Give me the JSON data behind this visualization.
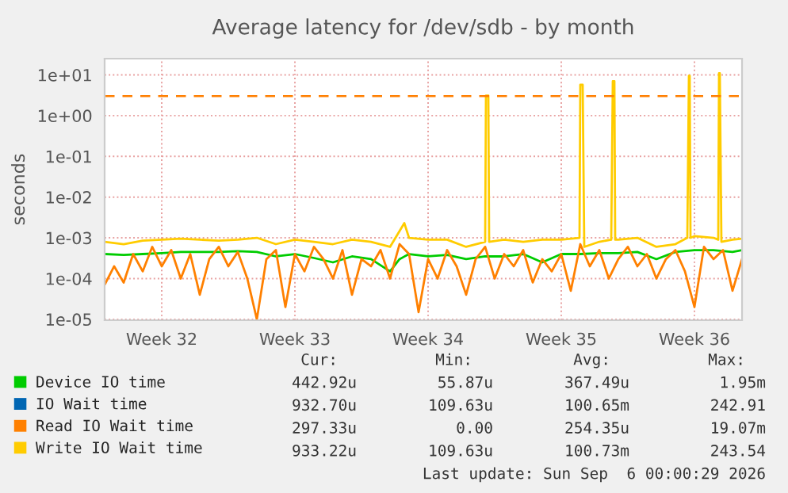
{
  "chart_data": {
    "type": "line",
    "title": "Average latency for /dev/sdb - by month",
    "ylabel": "seconds",
    "log": "y",
    "xlim": [
      "2026-08-03T12:00",
      "2026-09-06T00:00"
    ],
    "xticks": [
      {
        "value": "2026-08-06T12:00",
        "label": "Week 32"
      },
      {
        "value": "2026-08-13T12:00",
        "label": "Week 33"
      },
      {
        "value": "2026-08-20T12:00",
        "label": "Week 34"
      },
      {
        "value": "2026-08-27T12:00",
        "label": "Week 35"
      },
      {
        "value": "2026-09-03T12:00",
        "label": "Week 36"
      }
    ],
    "ylim": [
      9.5e-06,
      25
    ],
    "yticks": [
      {
        "value": 1e-05,
        "label": "1e-05"
      },
      {
        "value": 0.0001,
        "label": "1e-04"
      },
      {
        "value": 0.001,
        "label": "1e-03"
      },
      {
        "value": 0.01,
        "label": "1e-02"
      },
      {
        "value": 0.1,
        "label": "1e-01"
      },
      {
        "value": 1,
        "label": "1e+00"
      },
      {
        "value": 10,
        "label": "1e+01"
      }
    ],
    "grid": true,
    "legend": "bottom left",
    "ref_lines": [
      {
        "axis": "y",
        "value": 3,
        "color": "#ff7f00",
        "line_style": "dashed"
      }
    ],
    "series": [
      {
        "name": "Device IO time",
        "color": "#00cc00",
        "x": [
          "2026-08-03T12:00",
          "2026-08-04T12:00",
          "2026-08-05T12:00",
          "2026-08-06T12:00",
          "2026-08-07T12:00",
          "2026-08-08T12:00",
          "2026-08-09T12:00",
          "2026-08-10T12:00",
          "2026-08-11T12:00",
          "2026-08-12T12:00",
          "2026-08-13T12:00",
          "2026-08-14T12:00",
          "2026-08-15T12:00",
          "2026-08-16T12:00",
          "2026-08-17T12:00",
          "2026-08-18T12:00",
          "2026-08-19T00:00",
          "2026-08-19T12:00",
          "2026-08-20T12:00",
          "2026-08-21T12:00",
          "2026-08-22T12:00",
          "2026-08-23T12:00",
          "2026-08-24T12:00",
          "2026-08-25T12:00",
          "2026-08-26T12:00",
          "2026-08-27T12:00",
          "2026-08-28T12:00",
          "2026-08-29T12:00",
          "2026-08-30T12:00",
          "2026-08-31T12:00",
          "2026-09-01T12:00",
          "2026-09-02T12:00",
          "2026-09-03T12:00",
          "2026-09-04T12:00",
          "2026-09-05T12:00",
          "2026-09-06T00:00"
        ],
        "values": [
          0.0004,
          0.00038,
          0.0004,
          0.00042,
          0.00045,
          0.00045,
          0.00045,
          0.00047,
          0.00045,
          0.00035,
          0.0004,
          0.00032,
          0.00025,
          0.00035,
          0.0003,
          0.00015,
          0.0003,
          0.0004,
          0.00035,
          0.00038,
          0.0003,
          0.00035,
          0.00035,
          0.0004,
          0.00025,
          0.0004,
          0.0004,
          0.00042,
          0.00042,
          0.00045,
          0.0003,
          0.00045,
          0.0005,
          0.0005,
          0.00045,
          0.0005
        ]
      },
      {
        "name": "IO Wait time",
        "color": "#0066b3"
      },
      {
        "name": "Read IO Wait time",
        "color": "#ff8000",
        "x": [
          "2026-08-03T12:00",
          "2026-08-04T00:00",
          "2026-08-04T12:00",
          "2026-08-05T00:00",
          "2026-08-05T12:00",
          "2026-08-06T00:00",
          "2026-08-06T12:00",
          "2026-08-07T00:00",
          "2026-08-07T12:00",
          "2026-08-08T00:00",
          "2026-08-08T12:00",
          "2026-08-09T00:00",
          "2026-08-09T12:00",
          "2026-08-10T00:00",
          "2026-08-10T12:00",
          "2026-08-11T00:00",
          "2026-08-11T12:00",
          "2026-08-12T00:00",
          "2026-08-12T12:00",
          "2026-08-13T00:00",
          "2026-08-13T12:00",
          "2026-08-14T00:00",
          "2026-08-14T12:00",
          "2026-08-15T00:00",
          "2026-08-15T12:00",
          "2026-08-16T00:00",
          "2026-08-16T12:00",
          "2026-08-17T00:00",
          "2026-08-17T12:00",
          "2026-08-18T00:00",
          "2026-08-18T12:00",
          "2026-08-19T00:00",
          "2026-08-19T12:00",
          "2026-08-20T00:00",
          "2026-08-20T12:00",
          "2026-08-21T00:00",
          "2026-08-21T12:00",
          "2026-08-22T00:00",
          "2026-08-22T12:00",
          "2026-08-23T00:00",
          "2026-08-23T12:00",
          "2026-08-24T00:00",
          "2026-08-24T12:00",
          "2026-08-25T00:00",
          "2026-08-25T12:00",
          "2026-08-26T00:00",
          "2026-08-26T12:00",
          "2026-08-27T00:00",
          "2026-08-27T12:00",
          "2026-08-28T00:00",
          "2026-08-28T12:00",
          "2026-08-29T00:00",
          "2026-08-29T12:00",
          "2026-08-30T00:00",
          "2026-08-30T12:00",
          "2026-08-31T00:00",
          "2026-08-31T12:00",
          "2026-09-01T00:00",
          "2026-09-01T12:00",
          "2026-09-02T00:00",
          "2026-09-02T12:00",
          "2026-09-03T00:00",
          "2026-09-03T12:00",
          "2026-09-04T00:00",
          "2026-09-04T12:00",
          "2026-09-05T00:00",
          "2026-09-05T12:00",
          "2026-09-06T00:00"
        ],
        "values": [
          7e-05,
          0.0002,
          8e-05,
          0.0004,
          0.00015,
          0.0006,
          0.0002,
          0.0005,
          0.0001,
          0.0004,
          4e-05,
          0.0003,
          0.0006,
          0.0002,
          0.00045,
          0.0001,
          1e-05,
          0.0003,
          0.0005,
          2e-05,
          0.0004,
          0.00015,
          0.0006,
          0.0003,
          0.0001,
          0.0005,
          4e-05,
          0.0003,
          0.0002,
          0.0005,
          0.0001,
          0.0007,
          0.0004,
          1.5e-05,
          0.0003,
          0.0001,
          0.0005,
          0.0002,
          4e-05,
          0.0003,
          0.0006,
          0.0001,
          0.0004,
          0.0002,
          0.0005,
          8e-05,
          0.0003,
          0.00015,
          0.0004,
          5e-05,
          0.0007,
          0.0002,
          0.0005,
          0.0001,
          0.0003,
          0.0006,
          0.0002,
          0.0004,
          0.0001,
          0.0003,
          0.0005,
          0.00015,
          2e-05,
          0.0006,
          0.0003,
          0.0005,
          5e-05,
          0.0003
        ]
      },
      {
        "name": "Write IO Wait time",
        "color": "#ffcc00",
        "x": [
          "2026-08-03T12:00",
          "2026-08-04T12:00",
          "2026-08-05T12:00",
          "2026-08-06T12:00",
          "2026-08-07T12:00",
          "2026-08-08T12:00",
          "2026-08-09T12:00",
          "2026-08-10T12:00",
          "2026-08-11T12:00",
          "2026-08-12T12:00",
          "2026-08-13T12:00",
          "2026-08-14T12:00",
          "2026-08-15T12:00",
          "2026-08-16T12:00",
          "2026-08-17T12:00",
          "2026-08-18T12:00",
          "2026-08-19T06:00",
          "2026-08-19T12:00",
          "2026-08-20T12:00",
          "2026-08-21T12:00",
          "2026-08-22T12:00",
          "2026-08-23T12:00",
          "2026-08-23T13:00",
          "2026-08-23T16:00",
          "2026-08-23T17:00",
          "2026-08-24T12:00",
          "2026-08-25T12:00",
          "2026-08-26T12:00",
          "2026-08-27T12:00",
          "2026-08-28T11:00",
          "2026-08-28T12:00",
          "2026-08-28T15:00",
          "2026-08-28T17:00",
          "2026-08-29T12:00",
          "2026-08-30T03:00",
          "2026-08-30T05:00",
          "2026-08-30T07:00",
          "2026-08-30T08:00",
          "2026-08-30T12:00",
          "2026-08-31T12:00",
          "2026-09-01T12:00",
          "2026-09-02T12:00",
          "2026-09-03T03:00",
          "2026-09-03T05:00",
          "2026-09-03T06:00",
          "2026-09-03T07:00",
          "2026-09-03T12:00",
          "2026-09-04T12:00",
          "2026-09-04T18:00",
          "2026-09-04T19:00",
          "2026-09-04T20:00",
          "2026-09-04T22:00",
          "2026-09-05T12:00",
          "2026-09-06T00:00"
        ],
        "values": [
          0.0008,
          0.0007,
          0.00085,
          0.0009,
          0.00095,
          0.0009,
          0.00085,
          0.0009,
          0.001,
          0.0007,
          0.0009,
          0.0008,
          0.0007,
          0.0009,
          0.0008,
          0.0006,
          0.0023,
          0.001,
          0.0009,
          0.0009,
          0.0006,
          0.0008,
          3.1,
          3.1,
          0.0008,
          0.0009,
          0.0008,
          0.0009,
          0.0009,
          0.001,
          5.7,
          5.7,
          0.0006,
          0.0008,
          0.0009,
          7,
          7,
          0.0009,
          0.0009,
          0.001,
          0.0006,
          0.0007,
          0.001,
          9.5,
          9.5,
          0.001,
          0.0011,
          0.001,
          0.0009,
          11,
          11,
          0.0008,
          0.0009,
          0.00095
        ]
      }
    ],
    "annotations": [
      "Cur:",
      "Min:",
      "Avg:",
      "Max:",
      "442.92u",
      "55.87u",
      "367.49u",
      "1.95m",
      "932.70u",
      "109.63u",
      "100.65m",
      "242.91",
      "297.33u",
      "0.00",
      "254.35u",
      "19.07m",
      "933.22u",
      "109.63u",
      "100.73m",
      "243.54",
      "Last update: Sun Sep  6 00:00:29 2026"
    ]
  }
}
